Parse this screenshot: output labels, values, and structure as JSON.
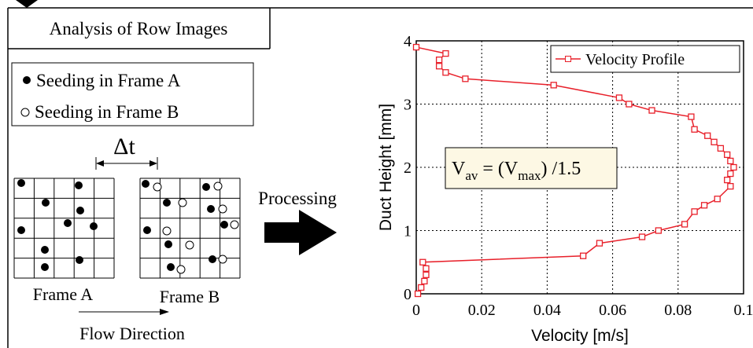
{
  "diagram": {
    "title": "Analysis of Row Images",
    "legend": [
      "Seeding in Frame A",
      "Seeding in Frame B"
    ],
    "delta": "Δt",
    "frames": [
      "Frame A",
      "Frame B"
    ],
    "processing": "Processing",
    "flow": "Flow Direction"
  },
  "chart_data": {
    "type": "line",
    "xlabel": "Velocity [m/s]",
    "ylabel": "Duct Height [mm]",
    "annotation": [
      "V",
      "av",
      " = (V",
      "max",
      ") /1.5"
    ],
    "x": [
      0.0005,
      0.0015,
      0.0025,
      0.003,
      0.003,
      0.002,
      0.051,
      0.056,
      0.069,
      0.074,
      0.082,
      0.085,
      0.088,
      0.092,
      0.096,
      0.095,
      0.096,
      0.097,
      0.096,
      0.095,
      0.093,
      0.091,
      0.089,
      0.085,
      0.084,
      0.072,
      0.065,
      0.062,
      0.042,
      0.015,
      0.009,
      0.007,
      0.007,
      0.009,
      0.0
    ],
    "series": [
      {
        "name": "Velocity Profile",
        "color": "#e8202a",
        "values": [
          0.0,
          0.1,
          0.2,
          0.3,
          0.4,
          0.5,
          0.6,
          0.8,
          0.9,
          1.0,
          1.1,
          1.3,
          1.4,
          1.5,
          1.7,
          1.8,
          1.9,
          2.0,
          2.1,
          2.2,
          2.3,
          2.4,
          2.5,
          2.6,
          2.8,
          2.9,
          3.0,
          3.1,
          3.3,
          3.4,
          3.5,
          3.6,
          3.7,
          3.8,
          3.9
        ]
      }
    ],
    "xlim": [
      0,
      0.1
    ],
    "ylim": [
      0,
      4
    ],
    "xticks": [
      0,
      0.02,
      0.04,
      0.06,
      0.08,
      0.1
    ],
    "yticks": [
      0,
      1,
      2,
      3,
      4
    ],
    "grid": true,
    "legend": "upper right"
  }
}
